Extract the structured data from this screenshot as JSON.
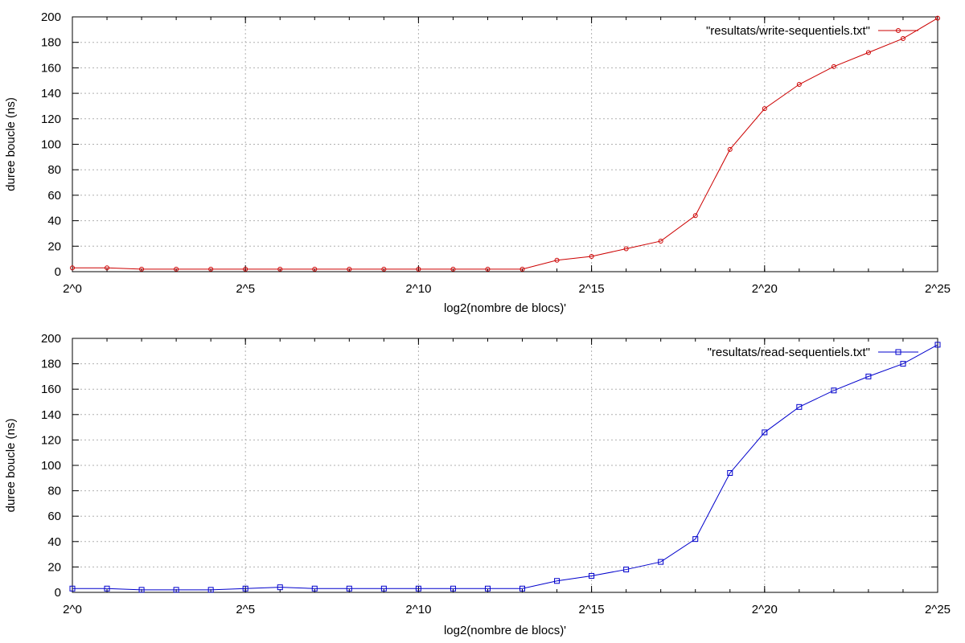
{
  "chart_data": [
    {
      "type": "line",
      "xlabel": "log2(nombre de blocs)'",
      "ylabel": "duree boucle (ns)",
      "xlim": [
        0,
        25
      ],
      "ylim": [
        0,
        200
      ],
      "x_ticks": [
        0,
        5,
        10,
        15,
        20,
        25
      ],
      "x_tick_labels": [
        "2^0",
        "2^5",
        "2^10",
        "2^15",
        "2^20",
        "2^25"
      ],
      "y_ticks": [
        0,
        20,
        40,
        60,
        80,
        100,
        120,
        140,
        160,
        180,
        200
      ],
      "y_tick_labels": [
        "0",
        "20",
        "40",
        "60",
        "80",
        "100",
        "120",
        "140",
        "160",
        "180",
        "200"
      ],
      "grid": true,
      "legend_position": "top-right",
      "series": [
        {
          "name": "\"resultats/write-sequentiels.txt\"",
          "color": "#cc0000",
          "marker": "circle",
          "x": [
            0,
            1,
            2,
            3,
            4,
            5,
            6,
            7,
            8,
            9,
            10,
            11,
            12,
            13,
            14,
            15,
            16,
            17,
            18,
            19,
            20,
            21,
            22,
            23,
            24,
            25
          ],
          "values": [
            3,
            3,
            2,
            2,
            2,
            2,
            2,
            2,
            2,
            2,
            2,
            2,
            2,
            2,
            9,
            12,
            18,
            24,
            44,
            96,
            128,
            147,
            161,
            172,
            183,
            199
          ]
        }
      ]
    },
    {
      "type": "line",
      "xlabel": "log2(nombre de blocs)'",
      "ylabel": "duree boucle (ns)",
      "xlim": [
        0,
        25
      ],
      "ylim": [
        0,
        200
      ],
      "x_ticks": [
        0,
        5,
        10,
        15,
        20,
        25
      ],
      "x_tick_labels": [
        "2^0",
        "2^5",
        "2^10",
        "2^15",
        "2^20",
        "2^25"
      ],
      "y_ticks": [
        0,
        20,
        40,
        60,
        80,
        100,
        120,
        140,
        160,
        180,
        200
      ],
      "y_tick_labels": [
        "0",
        "20",
        "40",
        "60",
        "80",
        "100",
        "120",
        "140",
        "160",
        "180",
        "200"
      ],
      "grid": true,
      "legend_position": "top-right",
      "series": [
        {
          "name": "\"resultats/read-sequentiels.txt\"",
          "color": "#0000cc",
          "marker": "square",
          "x": [
            0,
            1,
            2,
            3,
            4,
            5,
            6,
            7,
            8,
            9,
            10,
            11,
            12,
            13,
            14,
            15,
            16,
            17,
            18,
            19,
            20,
            21,
            22,
            23,
            24,
            25
          ],
          "values": [
            3,
            3,
            2,
            2,
            2,
            3,
            4,
            3,
            3,
            3,
            3,
            3,
            3,
            3,
            9,
            13,
            18,
            24,
            42,
            94,
            126,
            146,
            159,
            170,
            180,
            195
          ]
        }
      ]
    }
  ]
}
